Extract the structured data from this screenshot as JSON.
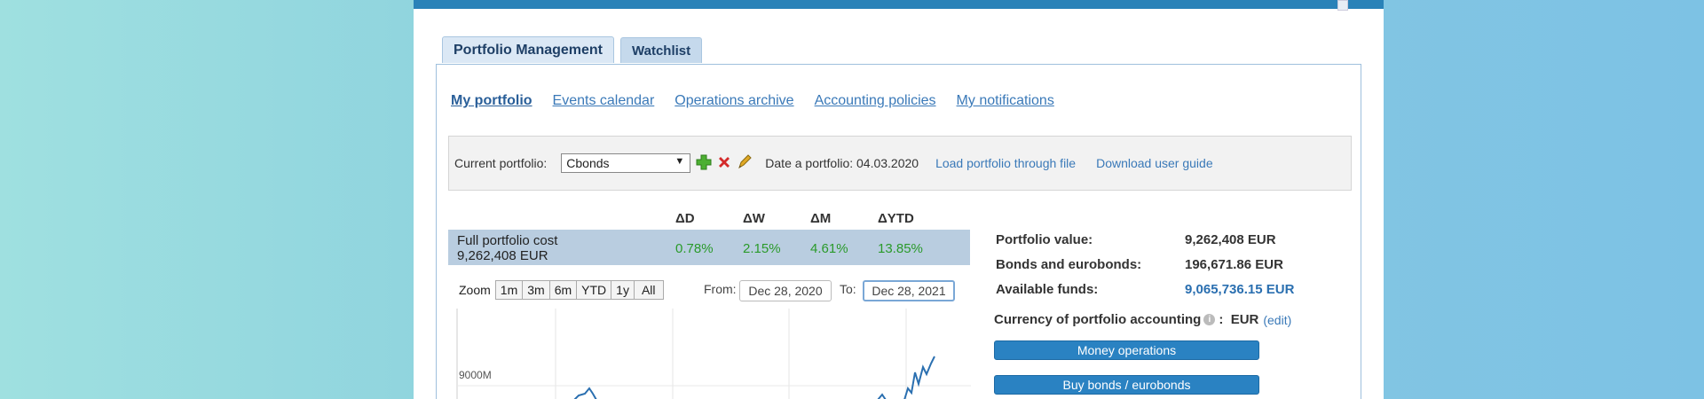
{
  "tabs": [
    {
      "label": "Portfolio Management",
      "active": true
    },
    {
      "label": "Watchlist",
      "active": false
    }
  ],
  "subnav": [
    {
      "label": "My portfolio",
      "active": true
    },
    {
      "label": "Events calendar"
    },
    {
      "label": "Operations archive"
    },
    {
      "label": "Accounting policies"
    },
    {
      "label": "My notifications"
    }
  ],
  "portfolio_bar": {
    "current_label": "Current portfolio:",
    "selected": "Cbonds",
    "date_label": "Date a portfolio: 04.03.2020",
    "load_link": "Load portfolio through file",
    "guide_link": "Download user guide"
  },
  "deltas": {
    "headers": [
      "ΔD",
      "ΔW",
      "ΔM",
      "ΔYTD"
    ],
    "full_cost_label": "Full portfolio cost",
    "full_cost_value": "9,262,408 EUR",
    "values": [
      "0.78%",
      "2.15%",
      "4.61%",
      "13.85%"
    ]
  },
  "zoom": {
    "label": "Zoom",
    "buttons": [
      "1m",
      "3m",
      "6m",
      "YTD",
      "1y",
      "All"
    ],
    "from_label": "From:",
    "from_value": "Dec 28, 2020",
    "to_label": "To:",
    "to_value": "Dec 28, 2021"
  },
  "chart_data": {
    "type": "line",
    "y_tick_labels": [
      "9000M"
    ],
    "series_color": "#2a6fb0"
  },
  "summary": {
    "portfolio_value_label": "Portfolio value:",
    "portfolio_value": "9,262,408 EUR",
    "bonds_label": "Bonds and eurobonds:",
    "bonds_value": "196,671.86 EUR",
    "funds_label": "Available funds:",
    "funds_value": "9,065,736.15 EUR",
    "currency_label": "Currency of portfolio accounting",
    "currency_value": "EUR",
    "edit_label": "(edit)"
  },
  "buttons": {
    "money_operations": "Money operations",
    "buy_bonds": "Buy bonds / eurobonds"
  },
  "colors": {
    "accent": "#2a82c2",
    "positive": "#2a9a2a",
    "link": "#3a79b8"
  }
}
